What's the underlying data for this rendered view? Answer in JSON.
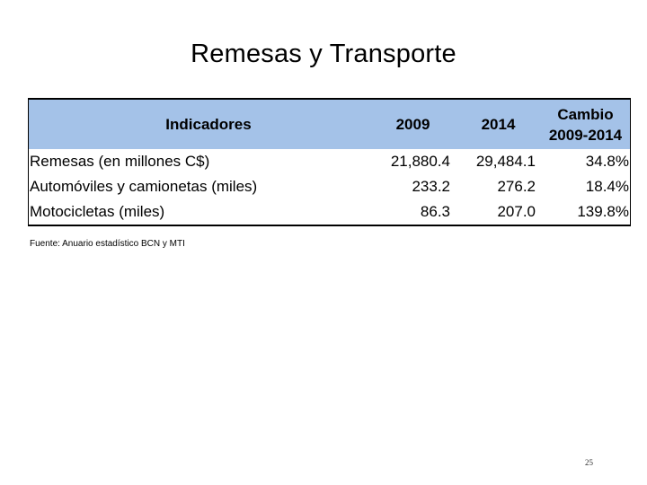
{
  "title": "Remesas y Transporte",
  "table": {
    "headers": {
      "indicator": "Indicadores",
      "year1": "2009",
      "year2": "2014",
      "change_line1": "Cambio",
      "change_line2": "2009-2014"
    },
    "rows": [
      {
        "label": "Remesas (en millones C$)",
        "v2009": "21,880.4",
        "v2014": "29,484.1",
        "change": "34.8%"
      },
      {
        "label": "Automóviles y camionetas (miles)",
        "v2009": "233.2",
        "v2014": "276.2",
        "change": "18.4%"
      },
      {
        "label": "Motocicletas (miles)",
        "v2009": "86.3",
        "v2014": "207.0",
        "change": "139.8%"
      }
    ]
  },
  "source": "Fuente: Anuario estadístico BCN y MTI",
  "page_number": "25",
  "colors": {
    "header_background": "#a4c2e8"
  }
}
